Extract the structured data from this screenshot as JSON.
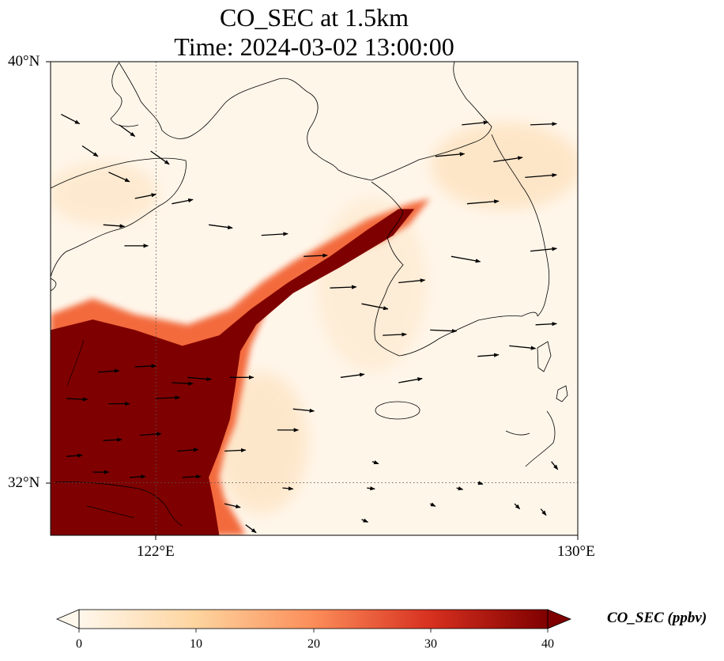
{
  "title": {
    "line1": "CO_SEC at 1.5km",
    "line2": "Time: 2024-03-02 13:00:00"
  },
  "axes": {
    "lat_labels": [
      "40°N",
      "32°N"
    ],
    "lon_labels": [
      "122°E",
      "130°E"
    ],
    "extent": {
      "lon_min": 120,
      "lon_max": 130,
      "lat_min": 31,
      "lat_max": 40
    },
    "gridlines": {
      "lons": [
        122
      ],
      "lats": [
        32
      ],
      "style": "dotted"
    }
  },
  "colorbar": {
    "label": "CO_SEC (ppbv)",
    "ticks": [
      "0",
      "10",
      "20",
      "30",
      "40"
    ],
    "range": [
      0,
      40
    ],
    "extend": "both",
    "colormap": "OrRd",
    "colors": [
      "#fff7ec",
      "#fdd49e",
      "#fc8d59",
      "#d7301f",
      "#7f0000"
    ]
  },
  "chart_data": {
    "type": "heatmap",
    "variable": "CO_SEC",
    "level": "1.5km",
    "units": "ppbv",
    "plume_polygon_lonlat": [
      [
        120.0,
        35.2
      ],
      [
        120.8,
        35.5
      ],
      [
        121.6,
        35.2
      ],
      [
        122.6,
        35.0
      ],
      [
        123.4,
        35.3
      ],
      [
        124.0,
        35.8
      ],
      [
        124.6,
        36.2
      ],
      [
        125.3,
        36.6
      ],
      [
        126.0,
        37.0
      ],
      [
        126.8,
        37.3
      ],
      [
        127.2,
        37.4
      ],
      [
        126.8,
        36.9
      ],
      [
        126.3,
        36.6
      ],
      [
        125.5,
        36.3
      ],
      [
        124.8,
        35.9
      ],
      [
        124.1,
        35.3
      ],
      [
        123.8,
        34.6
      ],
      [
        123.7,
        34.1
      ],
      [
        123.6,
        33.6
      ],
      [
        123.5,
        33.1
      ],
      [
        123.3,
        32.6
      ],
      [
        123.2,
        32.1
      ],
      [
        123.3,
        31.7
      ],
      [
        123.6,
        31.2
      ],
      [
        123.7,
        31.0
      ],
      [
        120.0,
        31.0
      ]
    ],
    "plume_core_polygon_lonlat": [
      [
        120.0,
        34.9
      ],
      [
        120.8,
        35.1
      ],
      [
        121.6,
        34.9
      ],
      [
        122.5,
        34.6
      ],
      [
        123.2,
        34.8
      ],
      [
        123.8,
        35.3
      ],
      [
        124.5,
        35.8
      ],
      [
        125.3,
        36.3
      ],
      [
        126.0,
        36.8
      ],
      [
        126.6,
        37.2
      ],
      [
        126.9,
        37.2
      ],
      [
        126.5,
        36.7
      ],
      [
        125.5,
        36.1
      ],
      [
        124.6,
        35.6
      ],
      [
        123.9,
        35.0
      ],
      [
        123.6,
        34.5
      ],
      [
        123.5,
        33.8
      ],
      [
        123.4,
        33.2
      ],
      [
        123.2,
        32.6
      ],
      [
        123.0,
        32.1
      ],
      [
        123.1,
        31.6
      ],
      [
        123.2,
        31.0
      ],
      [
        120.0,
        31.0
      ]
    ],
    "wind_vectors": [
      [
        120.2,
        39.0,
        0.35,
        -0.18
      ],
      [
        120.6,
        38.4,
        0.3,
        -0.2
      ],
      [
        121.3,
        38.8,
        0.3,
        -0.22
      ],
      [
        121.9,
        38.3,
        0.35,
        -0.25
      ],
      [
        121.1,
        37.9,
        0.4,
        -0.18
      ],
      [
        121.6,
        37.4,
        0.4,
        0.08
      ],
      [
        122.3,
        37.3,
        0.4,
        0.08
      ],
      [
        123.0,
        36.9,
        0.45,
        -0.06
      ],
      [
        121.0,
        36.9,
        0.4,
        -0.03
      ],
      [
        121.4,
        36.5,
        0.45,
        0
      ],
      [
        124.0,
        36.7,
        0.5,
        0.03
      ],
      [
        124.8,
        36.3,
        0.45,
        0.02
      ],
      [
        125.3,
        35.7,
        0.5,
        0.02
      ],
      [
        125.9,
        35.4,
        0.5,
        -0.1
      ],
      [
        126.6,
        35.8,
        0.5,
        0.05
      ],
      [
        127.6,
        36.3,
        0.55,
        -0.1
      ],
      [
        127.9,
        37.3,
        0.6,
        0.05
      ],
      [
        127.3,
        38.2,
        0.55,
        0.05
      ],
      [
        127.8,
        38.8,
        0.5,
        0.05
      ],
      [
        129.1,
        38.8,
        0.5,
        0.02
      ],
      [
        128.4,
        38.1,
        0.55,
        0.08
      ],
      [
        129.0,
        37.8,
        0.6,
        0.05
      ],
      [
        129.1,
        36.4,
        0.5,
        0.05
      ],
      [
        129.2,
        35.0,
        0.4,
        0.02
      ],
      [
        128.7,
        34.6,
        0.5,
        -0.05
      ],
      [
        126.3,
        34.8,
        0.45,
        0.02
      ],
      [
        127.2,
        34.9,
        0.5,
        -0.02
      ],
      [
        128.1,
        34.4,
        0.4,
        0.03
      ],
      [
        126.6,
        33.9,
        0.45,
        0.08
      ],
      [
        125.5,
        34.0,
        0.45,
        0.06
      ],
      [
        124.6,
        33.4,
        0.4,
        -0.04
      ],
      [
        124.3,
        33.0,
        0.4,
        0
      ],
      [
        123.4,
        34.0,
        0.45,
        0
      ],
      [
        122.6,
        34.0,
        0.45,
        -0.04
      ],
      [
        121.6,
        34.2,
        0.4,
        0.02
      ],
      [
        120.9,
        34.1,
        0.4,
        0.03
      ],
      [
        120.3,
        33.6,
        0.4,
        -0.02
      ],
      [
        121.1,
        33.5,
        0.4,
        0
      ],
      [
        122.0,
        33.6,
        0.45,
        0.02
      ],
      [
        122.3,
        33.9,
        0.4,
        -0.02
      ],
      [
        121.0,
        32.8,
        0.35,
        0.02
      ],
      [
        121.7,
        32.9,
        0.4,
        0.03
      ],
      [
        122.4,
        32.6,
        0.4,
        0.03
      ],
      [
        123.3,
        32.6,
        0.4,
        0.02
      ],
      [
        122.5,
        32.1,
        0.35,
        0.02
      ],
      [
        121.5,
        32.1,
        0.3,
        0.02
      ],
      [
        120.3,
        32.5,
        0.3,
        0.02
      ],
      [
        120.8,
        32.2,
        0.3,
        0
      ],
      [
        123.3,
        31.6,
        0.3,
        -0.07
      ],
      [
        124.4,
        31.9,
        0.2,
        -0.02
      ],
      [
        126.0,
        31.9,
        0.15,
        -0.02
      ],
      [
        127.2,
        31.6,
        0.1,
        -0.05
      ],
      [
        127.7,
        31.9,
        0.12,
        -0.03
      ],
      [
        128.8,
        31.6,
        0.1,
        -0.1
      ],
      [
        129.5,
        32.4,
        0.12,
        -0.15
      ],
      [
        129.3,
        31.5,
        0.1,
        -0.12
      ],
      [
        128.1,
        32.0,
        0.1,
        -0.03
      ],
      [
        123.7,
        31.2,
        0.2,
        -0.15
      ],
      [
        126.1,
        32.4,
        0.12,
        -0.04
      ],
      [
        125.9,
        31.3,
        0.12,
        -0.05
      ]
    ]
  }
}
